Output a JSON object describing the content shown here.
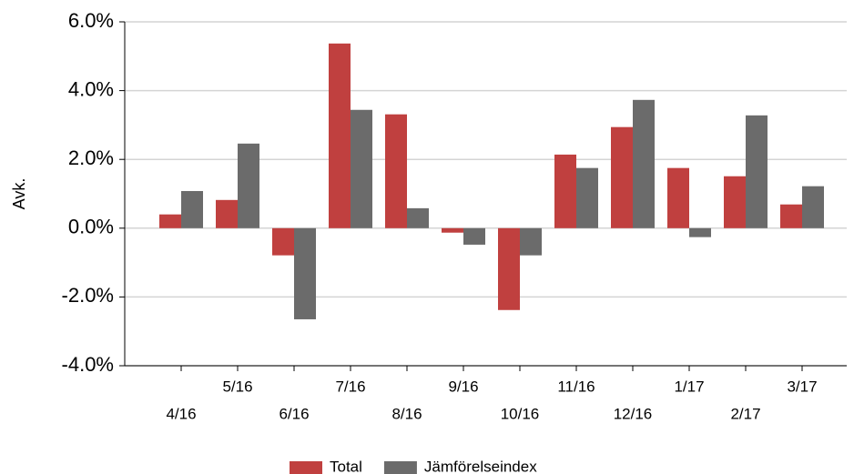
{
  "chart_data": {
    "type": "bar",
    "ylabel": "Avk.",
    "categories": [
      "4/16",
      "5/16",
      "6/16",
      "7/16",
      "8/16",
      "9/16",
      "10/16",
      "11/16",
      "12/16",
      "1/17",
      "2/17",
      "3/17"
    ],
    "series": [
      {
        "name": "Total",
        "color": "#c0403f",
        "values": [
          0.4,
          0.82,
          -0.79,
          5.37,
          3.31,
          -0.13,
          -2.38,
          2.14,
          2.94,
          1.75,
          1.51,
          0.69
        ]
      },
      {
        "name": "Jämförelseindex",
        "color": "#6b6b6b",
        "values": [
          1.08,
          2.46,
          -2.65,
          3.44,
          0.58,
          -0.48,
          -0.79,
          1.75,
          3.73,
          -0.26,
          3.28,
          1.22
        ]
      }
    ],
    "ylim": [
      -4,
      6
    ],
    "yticks": [
      {
        "value": -4,
        "label": "-4.0%"
      },
      {
        "value": -2,
        "label": "-2.0%"
      },
      {
        "value": 0,
        "label": "0.0%"
      },
      {
        "value": 2,
        "label": "2.0%"
      },
      {
        "value": 4,
        "label": "4.0%"
      },
      {
        "value": 6,
        "label": "6.0%"
      }
    ],
    "grid": true,
    "legend": "bottom"
  }
}
